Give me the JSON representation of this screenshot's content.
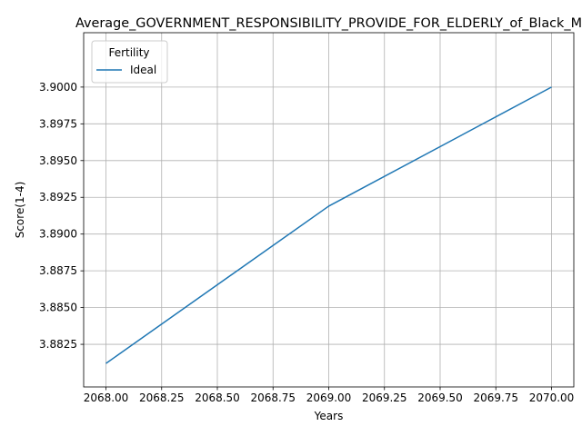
{
  "chart_data": {
    "type": "line",
    "title": "Average_GOVERNMENT_RESPONSIBILITY_PROVIDE_FOR_ELDERLY_of_Black_M",
    "xlabel": "Years",
    "ylabel": "Score(1-4)",
    "xlim": [
      2067.9,
      2070.1
    ],
    "ylim": [
      3.8796,
      3.9037
    ],
    "x_ticks": [
      2068.0,
      2068.25,
      2068.5,
      2068.75,
      2069.0,
      2069.25,
      2069.5,
      2069.75,
      2070.0
    ],
    "x_tick_labels": [
      "2068.00",
      "2068.25",
      "2068.50",
      "2068.75",
      "2069.00",
      "2069.25",
      "2069.50",
      "2069.75",
      "2070.00"
    ],
    "y_ticks": [
      3.8825,
      3.885,
      3.8875,
      3.89,
      3.8925,
      3.895,
      3.8975,
      3.9
    ],
    "y_tick_labels": [
      "3.8825",
      "3.8850",
      "3.8875",
      "3.8900",
      "3.8925",
      "3.8950",
      "3.8975",
      "3.9000"
    ],
    "grid": true,
    "legend": {
      "title": "Fertility",
      "placement": "upper left"
    },
    "series": [
      {
        "name": "Ideal",
        "color": "#1f77b4",
        "x": [
          2068,
          2069,
          2070
        ],
        "y": [
          3.8812,
          3.8919,
          3.9
        ]
      }
    ]
  }
}
